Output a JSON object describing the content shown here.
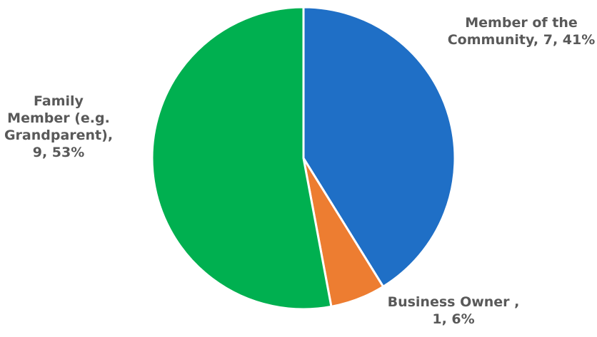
{
  "chart_data": {
    "type": "pie",
    "slices": [
      {
        "category": "Member of the Community",
        "value": 7,
        "percent": 41,
        "color": "#1f6fc6",
        "label_lines": [
          "Member of the",
          "Community, 7, 41%"
        ]
      },
      {
        "category": "Business Owner",
        "value": 1,
        "percent": 6,
        "color": "#ed7d31",
        "label_lines": [
          "Business Owner ,",
          "1, 6%"
        ]
      },
      {
        "category": "Family Member (e.g. Grandparent)",
        "value": 9,
        "percent": 53,
        "color": "#00b050",
        "label_lines": [
          "Family",
          "Member (e.g.",
          "Grandparent),",
          "9, 53%"
        ]
      }
    ],
    "start_angle": "12 o'clock",
    "direction": "clockwise",
    "legend": "none",
    "data_labels": "outside, category, value, percentage"
  }
}
